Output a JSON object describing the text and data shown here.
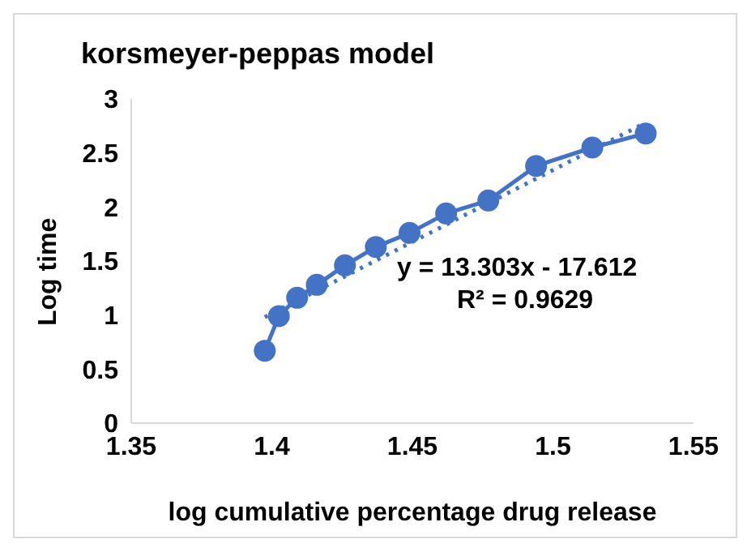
{
  "chart_data": {
    "type": "line",
    "title": "korsmeyer-peppas model",
    "xlabel": "log cumulative percentage drug release",
    "ylabel": "Log time",
    "x": [
      1.3975,
      1.4025,
      1.409,
      1.416,
      1.426,
      1.437,
      1.449,
      1.462,
      1.477,
      1.494,
      1.514,
      1.533
    ],
    "series": [
      {
        "color": "#4472c4",
        "values": [
          0.67,
          0.99,
          1.16,
          1.28,
          1.46,
          1.63,
          1.76,
          1.94,
          2.06,
          2.38,
          2.55,
          2.68
        ],
        "marker": "circle",
        "line_style": "solid"
      },
      {
        "type": "line",
        "x": [
          1.3975,
          1.533
        ],
        "color": "#4472c4",
        "values": [
          0.98,
          2.78
        ],
        "marker": "none",
        "line_style": "dotted"
      }
    ],
    "xlim": [
      1.35,
      1.55
    ],
    "xticks": [
      1.35,
      1.4,
      1.45,
      1.5,
      1.55
    ],
    "ylim": [
      0,
      3
    ],
    "yticks": [
      0,
      0.5,
      1,
      1.5,
      2,
      2.5,
      3
    ],
    "grid": false,
    "legend": false,
    "annotations": [
      "y = 13.303x - 17.612",
      "R² = 0.9629"
    ]
  }
}
